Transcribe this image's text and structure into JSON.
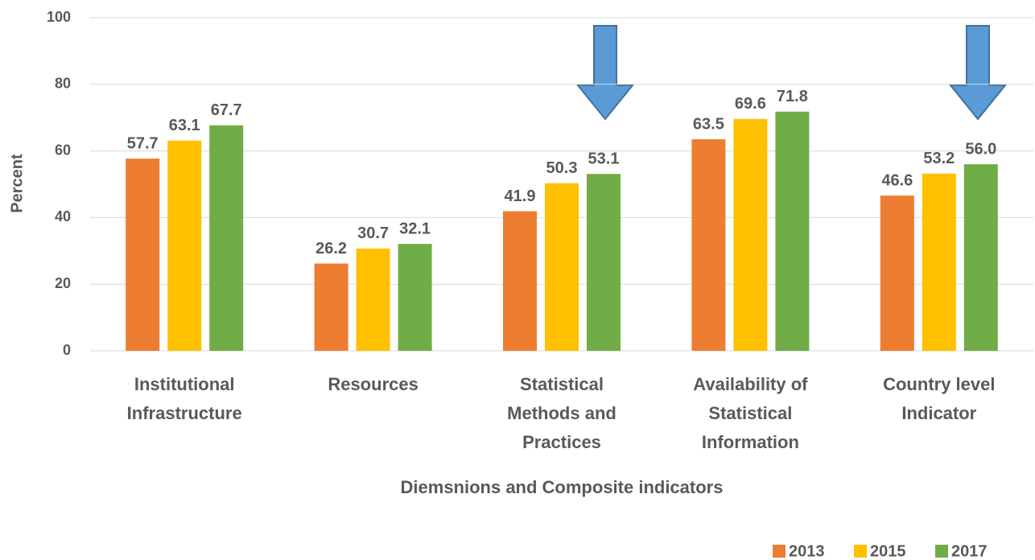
{
  "chart_data": {
    "type": "bar",
    "categories": [
      [
        "Institutional",
        "Infrastructure"
      ],
      [
        "Resources"
      ],
      [
        "Statistical",
        "Methods and",
        "Practices"
      ],
      [
        "Availability of",
        "Statistical",
        "Information"
      ],
      [
        "Country level",
        "Indicator"
      ]
    ],
    "series": [
      {
        "name": "2013",
        "color": "#ED7D31",
        "values": [
          57.7,
          26.2,
          41.9,
          63.5,
          46.6
        ],
        "value_labels": [
          "57.7",
          "26.2",
          "41.9",
          "63.5",
          "46.6"
        ]
      },
      {
        "name": "2015",
        "color": "#FFC000",
        "values": [
          63.1,
          30.7,
          50.3,
          69.6,
          53.2
        ],
        "value_labels": [
          "63.1",
          "30.7",
          "50.3",
          "69.6",
          "53.2"
        ]
      },
      {
        "name": "2017",
        "color": "#70AD47",
        "values": [
          67.7,
          32.1,
          53.1,
          71.8,
          56
        ],
        "value_labels": [
          "67.7",
          "32.1",
          "53.1",
          "71.8",
          "56.0"
        ]
      }
    ],
    "y_label": "Percent",
    "x_label": "Diemsnions and Composite indicators",
    "ylim": [
      0,
      100
    ],
    "yticks": [
      0,
      20,
      40,
      60,
      80,
      100
    ],
    "grid": true,
    "legend": "bottom-right"
  }
}
